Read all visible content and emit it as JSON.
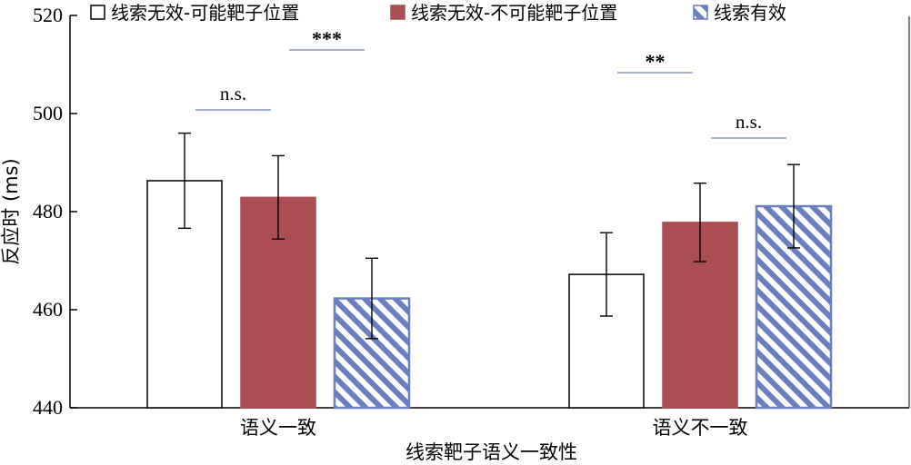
{
  "chart_data": {
    "type": "bar",
    "xlabel": "线索靶子语义一致性",
    "ylabel": "反应时 (ms)",
    "ylim": [
      440,
      520
    ],
    "yticks": [
      "440",
      "460",
      "480",
      "500",
      "520"
    ],
    "categories": [
      "语义一致",
      "语义不一致"
    ],
    "series": [
      {
        "name": "线索无效-可能靶子位置",
        "values": [
          486.3,
          467.2
        ],
        "errors": [
          9.7,
          8.5
        ],
        "fill": "#ffffff",
        "pattern": "none"
      },
      {
        "name": "线索无效-不可能靶子位置",
        "values": [
          482.9,
          477.8
        ],
        "errors": [
          8.5,
          8.0
        ],
        "fill": "#ab4e52",
        "pattern": "none"
      },
      {
        "name": "线索有效",
        "values": [
          462.3,
          481.1
        ],
        "errors": [
          8.2,
          8.5
        ],
        "fill": "#6a7fbf",
        "pattern": "diagonal-hatch"
      }
    ],
    "legend_position": "top",
    "significance": [
      {
        "category": "语义一致",
        "from_series": 0,
        "to_series": 1,
        "label": "n.s."
      },
      {
        "category": "语义一致",
        "from_series": 1,
        "to_series": 2,
        "label": "***"
      },
      {
        "category": "语义不一致",
        "from_series": 0,
        "to_series": 1,
        "label": "**"
      },
      {
        "category": "语义不一致",
        "from_series": 1,
        "to_series": 2,
        "label": "n.s."
      }
    ],
    "colors": {
      "axis": "#000000",
      "significance_line": "#6a7fbf",
      "error_bar": "#000000"
    }
  }
}
